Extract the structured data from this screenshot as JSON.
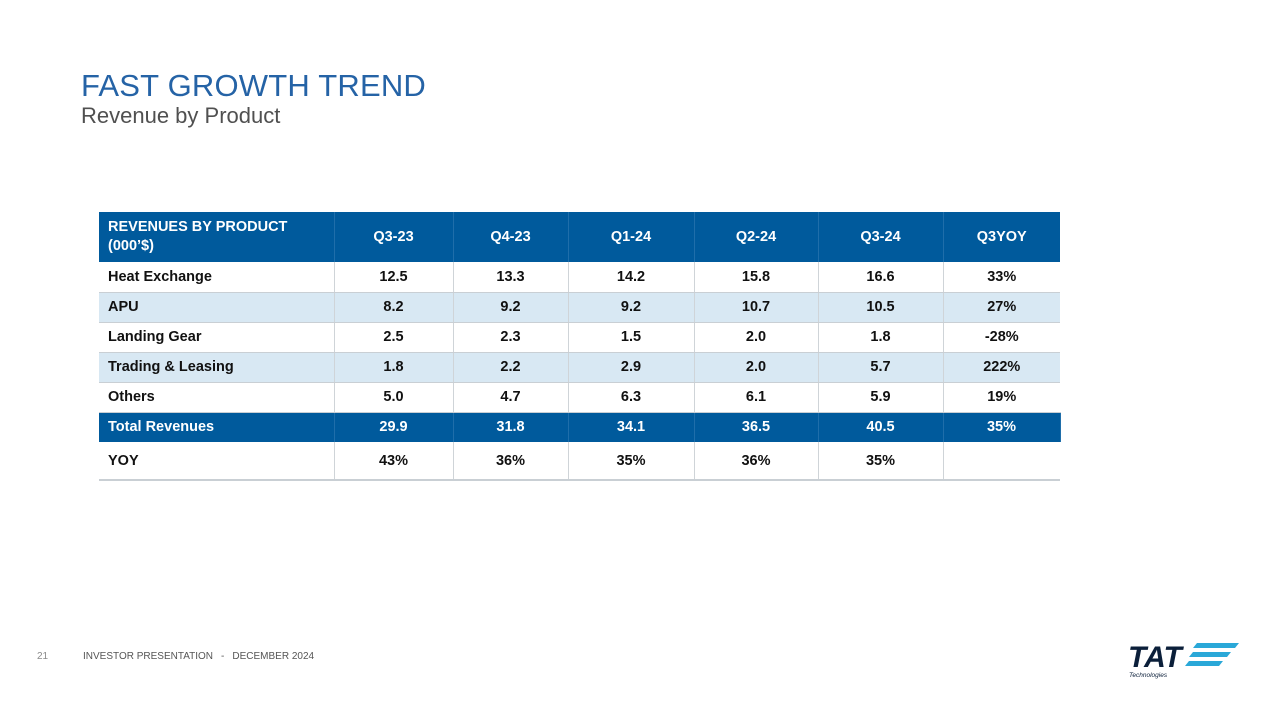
{
  "slide": {
    "title": "FAST GROWTH TREND",
    "subtitle": "Revenue by Product",
    "footer": {
      "page_number": "21",
      "label": "INVESTOR PRESENTATION",
      "separator": "-",
      "date": "DECEMBER 2024"
    },
    "logo": {
      "text": "TAT",
      "tagline": "Technologies"
    }
  },
  "table": {
    "header_line1": "REVENUES BY PRODUCT",
    "header_line2": "(000’$)",
    "columns": [
      "Q3-23",
      "Q4-23",
      "Q1-24",
      "Q2-24",
      "Q3-24",
      "Q3YOY"
    ],
    "rows": [
      {
        "label": "Heat Exchange",
        "values": [
          "12.5",
          "13.3",
          "14.2",
          "15.8",
          "16.6",
          "33%"
        ]
      },
      {
        "label": "APU",
        "values": [
          "8.2",
          "9.2",
          "9.2",
          "10.7",
          "10.5",
          "27%"
        ]
      },
      {
        "label": "Landing Gear",
        "values": [
          "2.5",
          "2.3",
          "1.5",
          "2.0",
          "1.8",
          "-28%"
        ]
      },
      {
        "label": "Trading & Leasing",
        "values": [
          "1.8",
          "2.2",
          "2.9",
          "2.0",
          "5.7",
          "222%"
        ]
      },
      {
        "label": "Others",
        "values": [
          "5.0",
          "4.7",
          "6.3",
          "6.1",
          "5.9",
          "19%"
        ]
      }
    ],
    "total": {
      "label": "Total Revenues",
      "values": [
        "29.9",
        "31.8",
        "34.1",
        "36.5",
        "40.5",
        "35%"
      ]
    },
    "yoy": {
      "label": "YOY",
      "values": [
        "43%",
        "36%",
        "35%",
        "36%",
        "35%",
        ""
      ]
    }
  },
  "colors": {
    "title": "#2563a6",
    "header_bg": "#005a9c",
    "alt_row_bg": "#d8e8f3",
    "logo_navy": "#0b1f3a",
    "logo_accent": "#2aa8d8"
  }
}
